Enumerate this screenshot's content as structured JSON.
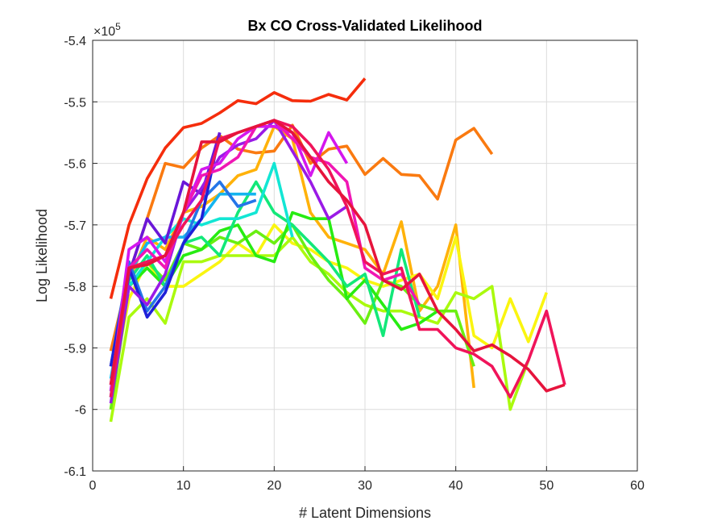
{
  "chart_data": {
    "type": "line",
    "title": "Bx CO Cross-Validated Likelihood",
    "xlabel": "# Latent Dimensions",
    "ylabel": "Log Likelihood",
    "exponent_label": "×10",
    "exponent_power": "5",
    "xlim": [
      0,
      60
    ],
    "ylim": [
      -6.1,
      -5.4
    ],
    "xticks": [
      0,
      10,
      20,
      30,
      40,
      50,
      60
    ],
    "xtick_labels": [
      "0",
      "10",
      "20",
      "30",
      "40",
      "50",
      "60"
    ],
    "yticks": [
      -6.1,
      -6.0,
      -5.9,
      -5.8,
      -5.7,
      -5.6,
      -5.5,
      -5.4
    ],
    "ytick_labels": [
      "-6.1",
      "-6",
      "-5.9",
      "-5.8",
      "-5.7",
      "-5.6",
      "-5.5",
      "-5.4"
    ],
    "grid": true,
    "series": [
      {
        "color": "#f52d0c",
        "x": [
          2,
          4,
          6,
          8,
          10,
          12,
          14,
          16,
          18,
          20,
          22,
          24,
          26,
          28,
          30
        ],
        "y": [
          -5.82,
          -5.7,
          -5.625,
          -5.575,
          -5.542,
          -5.535,
          -5.518,
          -5.498,
          -5.503,
          -5.485,
          -5.498,
          -5.499,
          -5.488,
          -5.497,
          -5.462
        ]
      },
      {
        "color": "#fa7a10",
        "x": [
          2,
          4,
          6,
          8,
          10,
          12,
          14,
          16,
          18,
          20,
          22,
          24,
          26,
          28,
          30,
          32,
          34,
          36,
          38,
          40,
          42,
          44
        ],
        "y": [
          -5.905,
          -5.78,
          -5.69,
          -5.6,
          -5.607,
          -5.575,
          -5.555,
          -5.577,
          -5.583,
          -5.58,
          -5.538,
          -5.6,
          -5.577,
          -5.572,
          -5.618,
          -5.592,
          -5.618,
          -5.62,
          -5.658,
          -5.562,
          -5.543,
          -5.585
        ]
      },
      {
        "color": "#ffb20a",
        "x": [
          2,
          4,
          6,
          8,
          10,
          12,
          14,
          16,
          18,
          20,
          22,
          24,
          26,
          28,
          30,
          32,
          34,
          36,
          38,
          40,
          42
        ],
        "y": [
          -5.93,
          -5.79,
          -5.72,
          -5.74,
          -5.68,
          -5.67,
          -5.65,
          -5.62,
          -5.61,
          -5.54,
          -5.56,
          -5.68,
          -5.72,
          -5.73,
          -5.74,
          -5.78,
          -5.695,
          -5.84,
          -5.8,
          -5.7,
          -5.965
        ]
      },
      {
        "color": "#faf510",
        "x": [
          2,
          4,
          6,
          8,
          10,
          12,
          14,
          16,
          18,
          20,
          22,
          24,
          26,
          28,
          30,
          32,
          34,
          36,
          38,
          40,
          42,
          44,
          46,
          48,
          50
        ],
        "y": [
          -5.97,
          -5.82,
          -5.76,
          -5.8,
          -5.8,
          -5.78,
          -5.76,
          -5.73,
          -5.75,
          -5.7,
          -5.73,
          -5.74,
          -5.76,
          -5.77,
          -5.79,
          -5.8,
          -5.79,
          -5.78,
          -5.82,
          -5.72,
          -5.88,
          -5.9,
          -5.82,
          -5.89,
          -5.81
        ]
      },
      {
        "color": "#aafa0e",
        "x": [
          2,
          4,
          6,
          8,
          10,
          12,
          14,
          16,
          18,
          20,
          22,
          24,
          26,
          28,
          30,
          32,
          34,
          36,
          38,
          40,
          42,
          44,
          46,
          48
        ],
        "y": [
          -6.02,
          -5.85,
          -5.82,
          -5.86,
          -5.76,
          -5.76,
          -5.75,
          -5.75,
          -5.75,
          -5.75,
          -5.72,
          -5.76,
          -5.78,
          -5.81,
          -5.83,
          -5.84,
          -5.84,
          -5.85,
          -5.86,
          -5.81,
          -5.82,
          -5.8,
          -6.0,
          -5.92
        ]
      },
      {
        "color": "#6aef12",
        "x": [
          2,
          4,
          6,
          8,
          10,
          12,
          14,
          16,
          18,
          20,
          22,
          24,
          26,
          28,
          30,
          32,
          34,
          36,
          38,
          40,
          42
        ],
        "y": [
          -6.0,
          -5.8,
          -5.76,
          -5.79,
          -5.73,
          -5.74,
          -5.72,
          -5.73,
          -5.71,
          -5.73,
          -5.7,
          -5.75,
          -5.79,
          -5.82,
          -5.86,
          -5.79,
          -5.8,
          -5.83,
          -5.84,
          -5.84,
          -5.93
        ]
      },
      {
        "color": "#27ec12",
        "x": [
          2,
          4,
          6,
          8,
          10,
          12,
          14,
          16,
          18,
          20,
          22,
          24,
          26,
          28,
          30,
          32,
          34,
          36,
          38
        ],
        "y": [
          -5.97,
          -5.8,
          -5.77,
          -5.8,
          -5.75,
          -5.74,
          -5.71,
          -5.7,
          -5.75,
          -5.76,
          -5.68,
          -5.69,
          -5.69,
          -5.82,
          -5.79,
          -5.83,
          -5.87,
          -5.86,
          -5.84
        ]
      },
      {
        "color": "#12e879",
        "x": [
          2,
          4,
          6,
          8,
          10,
          12,
          14,
          16,
          18,
          20,
          22,
          24,
          26,
          28,
          30,
          32,
          34,
          36
        ],
        "y": [
          -5.98,
          -5.79,
          -5.75,
          -5.8,
          -5.73,
          -5.72,
          -5.75,
          -5.68,
          -5.63,
          -5.68,
          -5.7,
          -5.73,
          -5.76,
          -5.8,
          -5.78,
          -5.88,
          -5.74,
          -5.85
        ]
      },
      {
        "color": "#12e6d4",
        "x": [
          2,
          4,
          6,
          8,
          10,
          12,
          14,
          16,
          18,
          20,
          22
        ],
        "y": [
          -5.96,
          -5.8,
          -5.76,
          -5.72,
          -5.69,
          -5.7,
          -5.69,
          -5.69,
          -5.68,
          -5.6,
          -5.72
        ]
      },
      {
        "color": "#15b4ef",
        "x": [
          2,
          4,
          6,
          8,
          10,
          12,
          14,
          16,
          18
        ],
        "y": [
          -5.95,
          -5.78,
          -5.73,
          -5.72,
          -5.72,
          -5.69,
          -5.65,
          -5.65,
          -5.65
        ]
      },
      {
        "color": "#2475e8",
        "x": [
          2,
          4,
          6,
          8,
          10,
          12,
          14,
          16,
          18
        ],
        "y": [
          -5.93,
          -5.76,
          -5.84,
          -5.8,
          -5.73,
          -5.66,
          -5.63,
          -5.67,
          -5.66
        ]
      },
      {
        "color": "#1f20d8",
        "x": [
          2,
          4,
          6,
          8,
          10,
          12,
          14
        ],
        "y": [
          -5.93,
          -5.77,
          -5.85,
          -5.81,
          -5.73,
          -5.69,
          -5.55
        ]
      },
      {
        "color": "#6a16d8",
        "x": [
          2,
          4,
          6,
          8,
          10,
          12,
          14
        ],
        "y": [
          -5.98,
          -5.78,
          -5.69,
          -5.73,
          -5.63,
          -5.65,
          -5.55
        ]
      },
      {
        "color": "#9a1ae6",
        "x": [
          2,
          4,
          6,
          8,
          10,
          12,
          14,
          16,
          18,
          20,
          22,
          24,
          26,
          28
        ],
        "y": [
          -5.99,
          -5.8,
          -5.83,
          -5.78,
          -5.68,
          -5.64,
          -5.59,
          -5.57,
          -5.56,
          -5.53,
          -5.58,
          -5.63,
          -5.69,
          -5.67
        ]
      },
      {
        "color": "#d417ee",
        "x": [
          2,
          4,
          6,
          8,
          10,
          12,
          14,
          16,
          18,
          20,
          22,
          24,
          26,
          28
        ],
        "y": [
          -5.97,
          -5.74,
          -5.72,
          -5.76,
          -5.68,
          -5.61,
          -5.6,
          -5.56,
          -5.54,
          -5.54,
          -5.55,
          -5.62,
          -5.55,
          -5.6
        ]
      },
      {
        "color": "#f017b4",
        "x": [
          2,
          4,
          6,
          8,
          10,
          12,
          14,
          16,
          18,
          20,
          22,
          24,
          26,
          28,
          30,
          32,
          34,
          36
        ],
        "y": [
          -5.96,
          -5.77,
          -5.74,
          -5.77,
          -5.68,
          -5.62,
          -5.61,
          -5.59,
          -5.54,
          -5.53,
          -5.56,
          -5.59,
          -5.6,
          -5.63,
          -5.77,
          -5.79,
          -5.78,
          -5.83
        ]
      },
      {
        "color": "#f0145a",
        "x": [
          2,
          4,
          6,
          8,
          10,
          12,
          14,
          16,
          18,
          20,
          22,
          24,
          26,
          28,
          30,
          32,
          34,
          36,
          38,
          40,
          42,
          44,
          46,
          48,
          50,
          52
        ],
        "y": [
          -5.98,
          -5.77,
          -5.76,
          -5.75,
          -5.7,
          -5.66,
          -5.56,
          -5.55,
          -5.54,
          -5.53,
          -5.54,
          -5.57,
          -5.61,
          -5.67,
          -5.76,
          -5.78,
          -5.77,
          -5.87,
          -5.87,
          -5.9,
          -5.91,
          -5.93,
          -5.98,
          -5.92,
          -5.84,
          -5.96
        ]
      },
      {
        "color": "#e6143c",
        "x": [
          2,
          4,
          6,
          8,
          10,
          12,
          14,
          16,
          18,
          20,
          22,
          24,
          26,
          28,
          30,
          32,
          34,
          36,
          38,
          40,
          42,
          44,
          46,
          48,
          50,
          52
        ],
        "y": [
          -5.96,
          -5.77,
          -5.765,
          -5.75,
          -5.68,
          -5.565,
          -5.565,
          -5.55,
          -5.54,
          -5.53,
          -5.55,
          -5.59,
          -5.63,
          -5.66,
          -5.7,
          -5.79,
          -5.805,
          -5.78,
          -5.84,
          -5.87,
          -5.905,
          -5.895,
          -5.913,
          -5.935,
          -5.97,
          -5.96
        ]
      }
    ]
  }
}
